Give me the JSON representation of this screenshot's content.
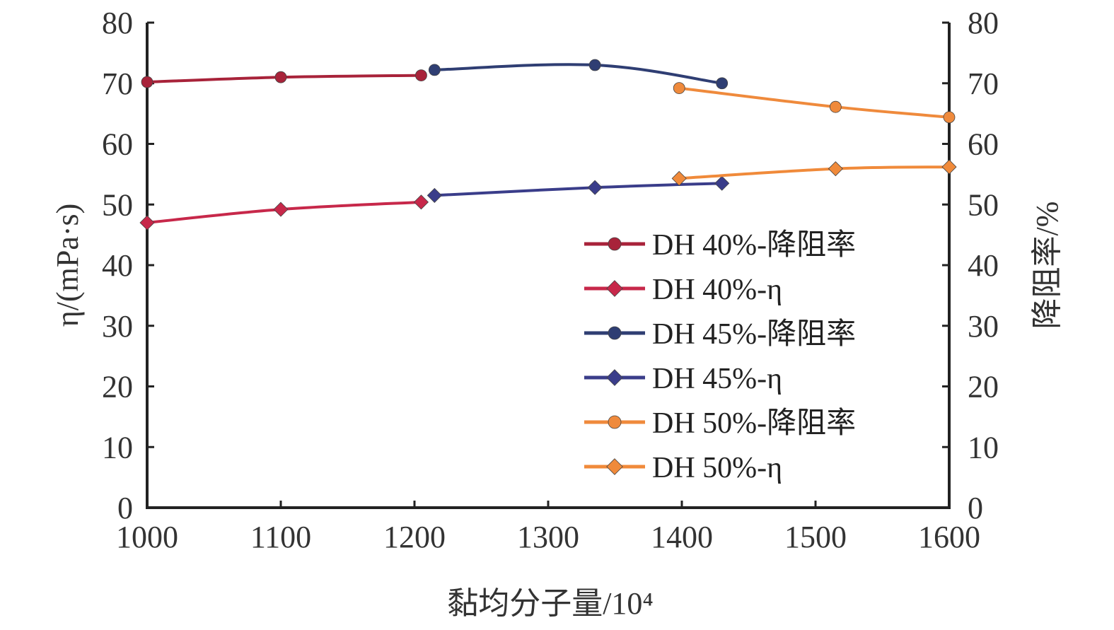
{
  "chart_data": {
    "type": "line",
    "xlabel": "黏均分子量/10⁴",
    "ylabel_left": "η/(mPa·s)",
    "ylabel_right": "降阻率/%",
    "xlim": [
      1000,
      1600
    ],
    "ylim_left": [
      0,
      80
    ],
    "ylim_right": [
      0,
      80
    ],
    "x_ticks": [
      "1000",
      "1100",
      "1200",
      "1300",
      "1400",
      "1500",
      "1600"
    ],
    "y_ticks": [
      "0",
      "10",
      "20",
      "30",
      "40",
      "50",
      "60",
      "70",
      "80"
    ],
    "grid": false,
    "legend_position": "right-center",
    "series": [
      {
        "name": "DH 40%-降阻率",
        "color": "#a8233a",
        "marker": "circle",
        "x": [
          1000,
          1100,
          1205
        ],
        "values": [
          70.2,
          71.0,
          71.3
        ]
      },
      {
        "name": "DH 40%-η",
        "color": "#c7284a",
        "marker": "diamond",
        "x": [
          1000,
          1100,
          1205
        ],
        "values": [
          47.0,
          49.2,
          50.4
        ]
      },
      {
        "name": "DH 45%-降阻率",
        "color": "#2f3e73",
        "marker": "circle",
        "x": [
          1215,
          1335,
          1430
        ],
        "values": [
          72.2,
          73.0,
          70.0
        ]
      },
      {
        "name": "DH 45%-η",
        "color": "#3a3d8a",
        "marker": "diamond",
        "x": [
          1215,
          1335,
          1430
        ],
        "values": [
          51.5,
          52.8,
          53.5
        ]
      },
      {
        "name": "DH 50%-降阻率",
        "color": "#ef8a3c",
        "marker": "circle",
        "x": [
          1398,
          1515,
          1600
        ],
        "values": [
          69.2,
          66.1,
          64.4
        ]
      },
      {
        "name": "DH 50%-η",
        "color": "#f08a3a",
        "marker": "diamond",
        "x": [
          1398,
          1515,
          1600
        ],
        "values": [
          54.3,
          55.9,
          56.2
        ]
      }
    ]
  }
}
